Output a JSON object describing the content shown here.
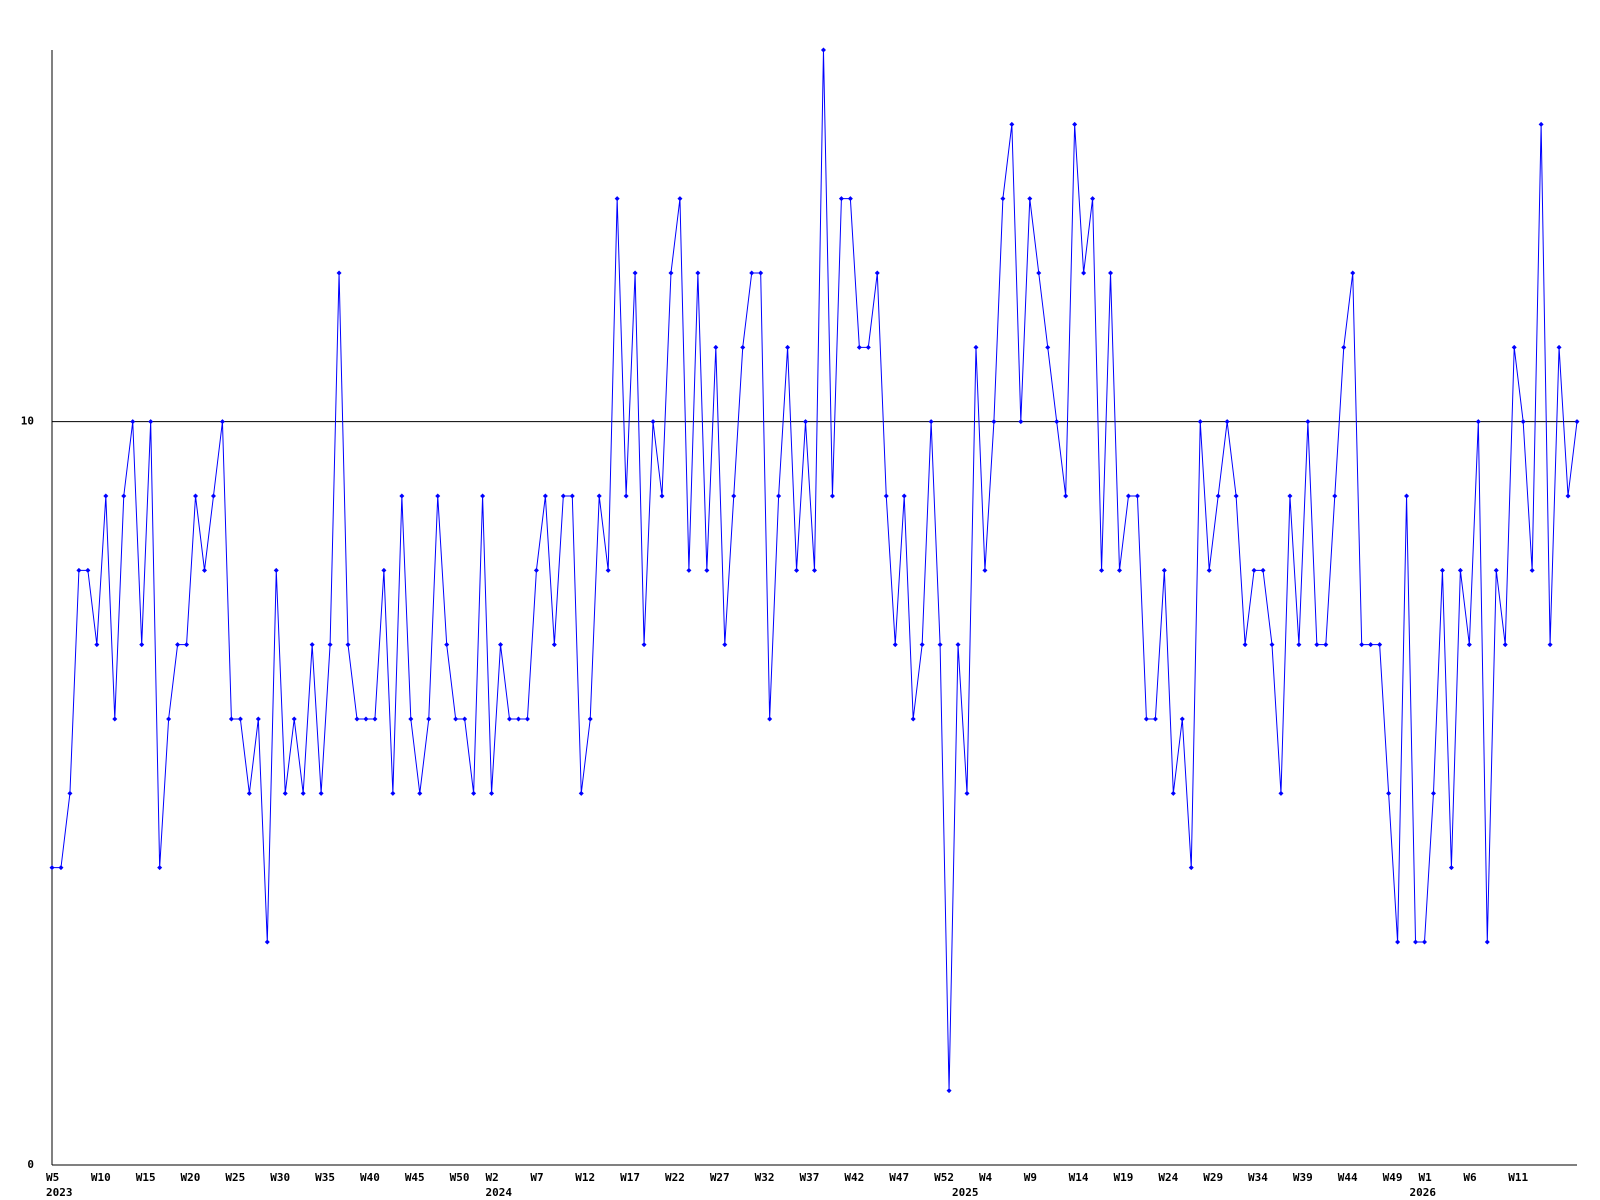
{
  "chart_data": {
    "type": "line",
    "categories": [
      "W5",
      null,
      null,
      null,
      null,
      "W10",
      null,
      null,
      null,
      null,
      "W15",
      null,
      null,
      null,
      null,
      "W20",
      null,
      null,
      null,
      null,
      "W25",
      null,
      null,
      null,
      null,
      "W30",
      null,
      null,
      null,
      null,
      "W35",
      null,
      null,
      null,
      null,
      "W40",
      null,
      null,
      null,
      null,
      "W45",
      null,
      null,
      null,
      null,
      "W50",
      null,
      null,
      null,
      "W2",
      null,
      null,
      null,
      null,
      "W7",
      null,
      null,
      null,
      null,
      "W12",
      null,
      null,
      null,
      null,
      "W17",
      null,
      null,
      null,
      null,
      "W22",
      null,
      null,
      null,
      null,
      "W27",
      null,
      null,
      null,
      null,
      "W32",
      null,
      null,
      null,
      null,
      "W37",
      null,
      null,
      null,
      null,
      "W42",
      null,
      null,
      null,
      null,
      "W47",
      null,
      null,
      null,
      null,
      "W52",
      null,
      null,
      null,
      null,
      "W4",
      null,
      null,
      null,
      null,
      "W9",
      null,
      null,
      null,
      null,
      "W14",
      null,
      null,
      null,
      null,
      "W19",
      null,
      null,
      null,
      null,
      "W24",
      null,
      null,
      null,
      null,
      "W29",
      null,
      null,
      null,
      null,
      "W34",
      null,
      null,
      null,
      null,
      "W39",
      null,
      null,
      null,
      null,
      "W44",
      null,
      null,
      null,
      null,
      "W49",
      null,
      null,
      null,
      "W1",
      null,
      null,
      null,
      null,
      "W6",
      null,
      null,
      null,
      null,
      "W11",
      null,
      null,
      null,
      null,
      null,
      null,
      null
    ],
    "year_labels": [
      "2023",
      null,
      null,
      null,
      null,
      null,
      null,
      null,
      null,
      null,
      null,
      null,
      null,
      null,
      null,
      null,
      null,
      null,
      null,
      null,
      null,
      null,
      null,
      null,
      null,
      null,
      null,
      null,
      null,
      null,
      null,
      null,
      null,
      null,
      null,
      null,
      null,
      null,
      null,
      null,
      null,
      null,
      null,
      null,
      null,
      null,
      null,
      null,
      null,
      "2024",
      null,
      null,
      null,
      null,
      null,
      null,
      null,
      null,
      null,
      null,
      null,
      null,
      null,
      null,
      null,
      null,
      null,
      null,
      null,
      null,
      null,
      null,
      null,
      null,
      null,
      null,
      null,
      null,
      null,
      null,
      null,
      null,
      null,
      null,
      null,
      null,
      null,
      null,
      null,
      null,
      null,
      null,
      null,
      null,
      null,
      null,
      null,
      null,
      null,
      null,
      null,
      "2025",
      null,
      null,
      null,
      null,
      null,
      null,
      null,
      null,
      null,
      null,
      null,
      null,
      null,
      null,
      null,
      null,
      null,
      null,
      null,
      null,
      null,
      null,
      null,
      null,
      null,
      null,
      null,
      null,
      null,
      null,
      null,
      null,
      null,
      null,
      null,
      null,
      null,
      null,
      null,
      null,
      null,
      null,
      null,
      null,
      null,
      null,
      null,
      null,
      null,
      null,
      "2026",
      null,
      null,
      null,
      null,
      null,
      null,
      null,
      null,
      null,
      null,
      null,
      null,
      null,
      null,
      null,
      null
    ],
    "values": [
      4,
      4,
      5,
      8,
      8,
      7,
      9,
      6,
      9,
      10,
      7,
      10,
      4,
      6,
      7,
      7,
      9,
      8,
      9,
      10,
      6,
      6,
      5,
      6,
      3,
      8,
      5,
      6,
      5,
      7,
      5,
      7,
      12,
      7,
      6,
      6,
      6,
      8,
      5,
      9,
      6,
      5,
      6,
      9,
      7,
      6,
      6,
      5,
      9,
      5,
      7,
      6,
      6,
      6,
      8,
      9,
      7,
      9,
      9,
      5,
      6,
      9,
      8,
      13,
      9,
      12,
      7,
      10,
      9,
      12,
      13,
      8,
      12,
      8,
      11,
      7,
      9,
      11,
      12,
      12,
      6,
      9,
      11,
      8,
      10,
      8,
      15,
      9,
      13,
      13,
      11,
      11,
      12,
      9,
      7,
      9,
      6,
      7,
      10,
      7,
      1,
      7,
      5,
      11,
      8,
      10,
      13,
      14,
      10,
      13,
      12,
      11,
      10,
      9,
      14,
      12,
      13,
      8,
      12,
      8,
      9,
      9,
      6,
      6,
      8,
      5,
      6,
      4,
      10,
      8,
      9,
      10,
      9,
      7,
      8,
      8,
      7,
      5,
      9,
      7,
      10,
      7,
      7,
      9,
      11,
      12,
      7,
      7,
      7,
      5,
      3,
      9,
      3,
      3,
      5,
      8,
      4,
      8,
      7,
      10,
      3,
      8,
      7,
      11,
      10,
      8,
      14,
      7,
      11,
      9,
      10
    ],
    "color": "#0000ff",
    "ylim": [
      0,
      15
    ],
    "yticks": [
      0,
      10
    ],
    "grid": true
  }
}
